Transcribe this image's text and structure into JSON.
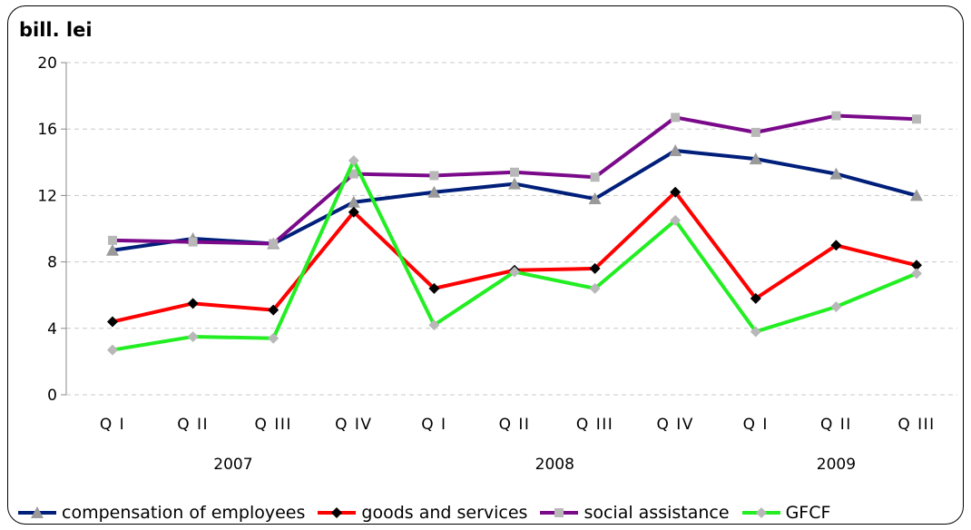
{
  "chart_data": {
    "type": "line",
    "ylabel": "bill. lei",
    "ylim": [
      0,
      20
    ],
    "yticks": [
      0,
      4,
      8,
      12,
      16,
      20
    ],
    "grid": true,
    "categories": [
      "Q I",
      "Q II",
      "Q III",
      "Q IV",
      "Q I",
      "Q II",
      "Q III",
      "Q IV",
      "Q I",
      "Q II",
      "Q III"
    ],
    "years": [
      {
        "label": "2007",
        "from": 0,
        "to": 3
      },
      {
        "label": "2008",
        "from": 4,
        "to": 7
      },
      {
        "label": "2009",
        "from": 8,
        "to": 10
      }
    ],
    "legend_position": "bottom",
    "series": [
      {
        "name": "compensation of employees",
        "color": "#001f7a",
        "marker": "triangle",
        "marker_color": "#9a9a9a",
        "values": [
          8.7,
          9.4,
          9.1,
          11.6,
          12.2,
          12.7,
          11.8,
          14.7,
          14.2,
          13.3,
          12.0
        ]
      },
      {
        "name": "goods and services",
        "color": "#ff0000",
        "marker": "diamond",
        "marker_color": "#000000",
        "values": [
          4.4,
          5.5,
          5.1,
          11.0,
          6.4,
          7.5,
          7.6,
          12.2,
          5.8,
          9.0,
          7.8
        ]
      },
      {
        "name": "social assistance",
        "color": "#7a0a8a",
        "marker": "square",
        "marker_color": "#b8b8b8",
        "values": [
          9.3,
          9.2,
          9.1,
          13.3,
          13.2,
          13.4,
          13.1,
          16.7,
          15.8,
          16.8,
          16.6
        ]
      },
      {
        "name": "GFCF",
        "color": "#22ee22",
        "marker": "diamond",
        "marker_color": "#b8b8b8",
        "values": [
          2.7,
          3.5,
          3.4,
          14.1,
          4.2,
          7.4,
          6.4,
          10.5,
          3.8,
          5.3,
          7.3
        ]
      }
    ]
  }
}
